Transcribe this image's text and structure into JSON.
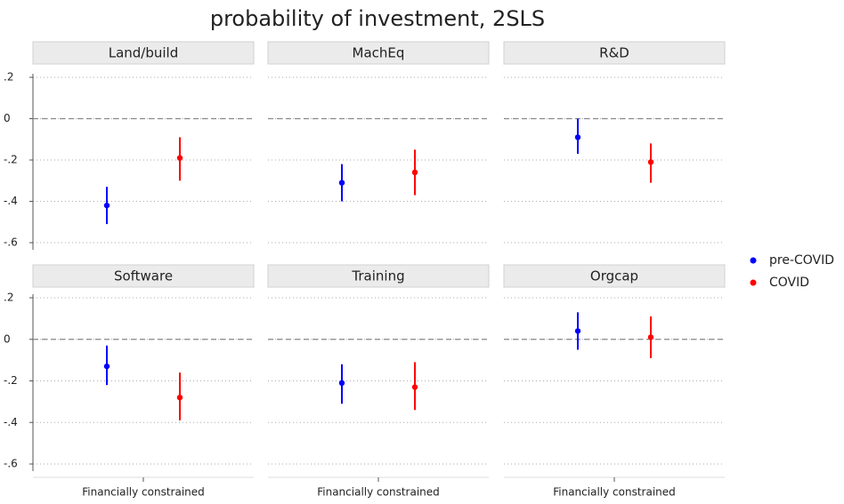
{
  "chart_data": {
    "type": "errorbar",
    "title": "probability of investment, 2SLS",
    "category": "Financially constrained",
    "ylim": [
      -0.6,
      0.2
    ],
    "yticks": [
      {
        "value": 0.2,
        "label": ".2"
      },
      0,
      {
        "value": -0.2,
        "label": "-.2"
      },
      {
        "value": -0.4,
        "label": "-.4"
      },
      {
        "value": -0.6,
        "label": "-.6"
      }
    ],
    "grid": true,
    "reference_line": 0,
    "legend": "right",
    "series": [
      {
        "name": "pre-COVID",
        "color": "#0000ff"
      },
      {
        "name": "COVID",
        "color": "#ff0000"
      }
    ],
    "panels": [
      {
        "title": "Land/build",
        "values": [
          -0.42,
          -0.19
        ],
        "low": [
          -0.51,
          -0.3
        ],
        "high": [
          -0.33,
          -0.09
        ]
      },
      {
        "title": "MachEq",
        "values": [
          -0.31,
          -0.26
        ],
        "low": [
          -0.4,
          -0.37
        ],
        "high": [
          -0.22,
          -0.15
        ]
      },
      {
        "title": "R&D",
        "values": [
          -0.09,
          -0.21
        ],
        "low": [
          -0.17,
          -0.31
        ],
        "high": [
          0.0,
          -0.12
        ]
      },
      {
        "title": "Software",
        "values": [
          -0.13,
          -0.28
        ],
        "low": [
          -0.22,
          -0.39
        ],
        "high": [
          -0.03,
          -0.16
        ]
      },
      {
        "title": "Training",
        "values": [
          -0.21,
          -0.23
        ],
        "low": [
          -0.31,
          -0.34
        ],
        "high": [
          -0.12,
          -0.11
        ]
      },
      {
        "title": "Orgcap",
        "values": [
          0.04,
          0.01
        ],
        "low": [
          -0.05,
          -0.09
        ],
        "high": [
          0.13,
          0.11
        ]
      }
    ]
  }
}
